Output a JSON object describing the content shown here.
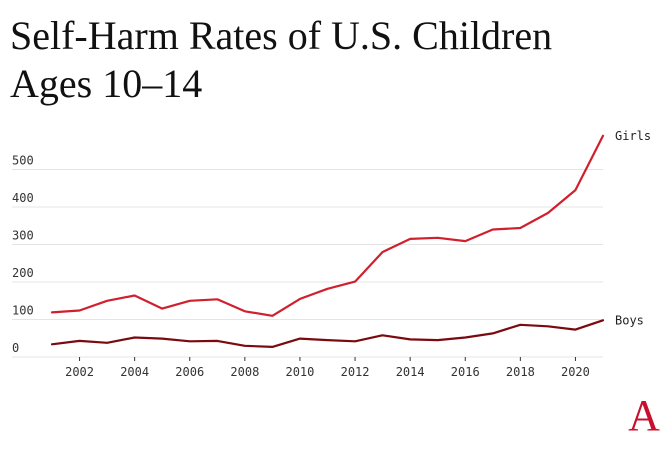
{
  "title_line1": "Self-Harm Rates of U.S. Children",
  "title_line2": "Ages 10–14",
  "logo_text": "A",
  "logo_color": "#c8102e",
  "chart_data": {
    "type": "line",
    "title": "Self-Harm Rates of U.S. Children Ages 10–14",
    "xlabel": "",
    "ylabel": "",
    "xlim": [
      2001,
      2021
    ],
    "ylim": [
      0,
      600
    ],
    "x_ticks": [
      2002,
      2004,
      2006,
      2008,
      2010,
      2012,
      2014,
      2016,
      2018,
      2020
    ],
    "y_ticks": [
      0,
      100,
      200,
      300,
      400,
      500
    ],
    "grid": true,
    "legend": "none (series labeled at line ends)",
    "x": [
      2001,
      2002,
      2003,
      2004,
      2005,
      2006,
      2007,
      2008,
      2009,
      2010,
      2011,
      2012,
      2013,
      2014,
      2015,
      2016,
      2017,
      2018,
      2019,
      2020,
      2021
    ],
    "series": [
      {
        "name": "Girls",
        "color": "#d0202e",
        "values": [
          119,
          124,
          150,
          164,
          129,
          150,
          154,
          122,
          110,
          155,
          182,
          201,
          280,
          315,
          318,
          309,
          340,
          344,
          384,
          445,
          590
        ]
      },
      {
        "name": "Boys",
        "color": "#7a0a0f",
        "values": [
          34,
          43,
          38,
          52,
          49,
          42,
          43,
          30,
          27,
          49,
          45,
          42,
          58,
          47,
          45,
          52,
          63,
          86,
          82,
          73,
          98
        ]
      }
    ]
  }
}
